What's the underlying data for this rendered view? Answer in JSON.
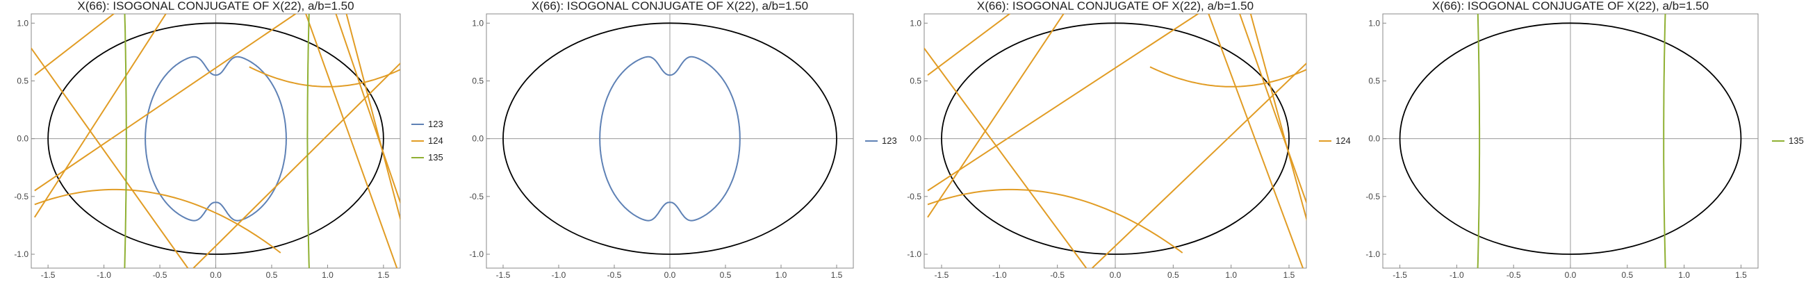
{
  "colors": {
    "s123": "#5e81b5",
    "s124": "#e19c24",
    "s135": "#8fb032",
    "ellipse": "#000000",
    "axes": "#999999",
    "frame": "#888888"
  },
  "chart_data": [
    {
      "type": "line",
      "title": "X(66): ISOGONAL CONJUGATE OF X(22), a/b=1.50",
      "xlim": [
        -1.65,
        1.65
      ],
      "ylim": [
        -1.12,
        1.08
      ],
      "xticks": [
        -1.5,
        -1.0,
        -0.5,
        0.0,
        0.5,
        1.0,
        1.5
      ],
      "yticks": [
        -1.0,
        -0.5,
        0.0,
        0.5,
        1.0
      ],
      "xtick_labels": [
        "-1.5",
        "-1.0",
        "-0.5",
        "0.0",
        "0.5",
        "1.0",
        "1.5"
      ],
      "ytick_labels": [
        "-1.0",
        "-0.5",
        "0.0",
        "0.5",
        "1.0"
      ],
      "ellipse": {
        "a": 1.5,
        "b": 1.0
      },
      "legend": [
        "123",
        "124",
        "135"
      ],
      "legend_position": "right",
      "series": [
        {
          "name": "123",
          "color": "#5e81b5"
        },
        {
          "name": "124",
          "color": "#e19c24"
        },
        {
          "name": "135",
          "color": "#8fb032"
        }
      ]
    },
    {
      "type": "line",
      "title": "X(66): ISOGONAL CONJUGATE OF X(22), a/b=1.50",
      "xlim": [
        -1.65,
        1.65
      ],
      "ylim": [
        -1.12,
        1.08
      ],
      "xticks": [
        -1.5,
        -1.0,
        -0.5,
        0.0,
        0.5,
        1.0,
        1.5
      ],
      "yticks": [
        -1.0,
        -0.5,
        0.0,
        0.5,
        1.0
      ],
      "xtick_labels": [
        "-1.5",
        "-1.0",
        "-0.5",
        "0.0",
        "0.5",
        "1.0",
        "1.5"
      ],
      "ytick_labels": [
        "-1.0",
        "-0.5",
        "0.0",
        "0.5",
        "1.0"
      ],
      "ellipse": {
        "a": 1.5,
        "b": 1.0
      },
      "legend": [
        "123"
      ],
      "legend_position": "right",
      "series": [
        {
          "name": "123",
          "color": "#5e81b5"
        }
      ]
    },
    {
      "type": "line",
      "title": "X(66): ISOGONAL CONJUGATE OF X(22), a/b=1.50",
      "xlim": [
        -1.65,
        1.65
      ],
      "ylim": [
        -1.12,
        1.08
      ],
      "xticks": [
        -1.5,
        -1.0,
        -0.5,
        0.0,
        0.5,
        1.0,
        1.5
      ],
      "yticks": [
        -1.0,
        -0.5,
        0.0,
        0.5,
        1.0
      ],
      "xtick_labels": [
        "-1.5",
        "-1.0",
        "-0.5",
        "0.0",
        "0.5",
        "1.0",
        "1.5"
      ],
      "ytick_labels": [
        "-1.0",
        "-0.5",
        "0.0",
        "0.5",
        "1.0"
      ],
      "ellipse": {
        "a": 1.5,
        "b": 1.0
      },
      "legend": [
        "124"
      ],
      "legend_position": "right",
      "series": [
        {
          "name": "124",
          "color": "#e19c24"
        }
      ]
    },
    {
      "type": "line",
      "title": "X(66): ISOGONAL CONJUGATE OF X(22), a/b=1.50",
      "xlim": [
        -1.65,
        1.65
      ],
      "ylim": [
        -1.12,
        1.08
      ],
      "xticks": [
        -1.5,
        -1.0,
        -0.5,
        0.0,
        0.5,
        1.0,
        1.5
      ],
      "yticks": [
        -1.0,
        -0.5,
        0.0,
        0.5,
        1.0
      ],
      "xtick_labels": [
        "-1.5",
        "-1.0",
        "-0.5",
        "0.0",
        "0.5",
        "1.0",
        "1.5"
      ],
      "ytick_labels": [
        "-1.0",
        "-0.5",
        "0.0",
        "0.5",
        "1.0"
      ],
      "ellipse": {
        "a": 1.5,
        "b": 1.0
      },
      "legend": [
        "135"
      ],
      "legend_position": "right",
      "series": [
        {
          "name": "135",
          "color": "#8fb032"
        }
      ]
    }
  ]
}
